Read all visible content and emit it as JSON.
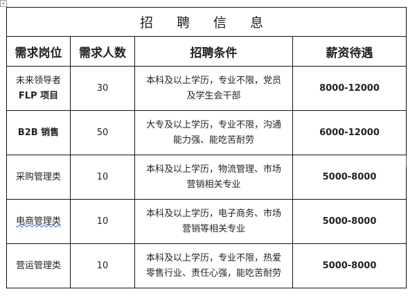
{
  "title": "招 聘 信 息",
  "headers": [
    "需求岗位",
    "需求人数",
    "招聘条件",
    "薪资待遇"
  ],
  "rows": [
    {
      "position": [
        "未来领导者",
        "FLP 项目"
      ],
      "count": "30",
      "requirements": [
        "本科及以上学历，专业不限，党员",
        "及学生会干部"
      ],
      "salary": "8000-12000"
    },
    {
      "position": [
        "B2B 销售"
      ],
      "count": "50",
      "requirements": [
        "大专及以上学历，专业不限，沟通",
        "能力强、能吃苦耐劳"
      ],
      "salary": "6000-12000"
    },
    {
      "position": [
        "采购管理类"
      ],
      "count": "10",
      "requirements": [
        "本科及以上学历，物流管理、市场",
        "营销相关专业"
      ],
      "salary": "5000-8000"
    },
    {
      "position": [
        "电商管理类"
      ],
      "count": "10",
      "requirements": [
        "本科及以上学历，电子商务、市场",
        "营销等相关专业"
      ],
      "salary": "5000-8000"
    },
    {
      "position": [
        "营运管理类"
      ],
      "count": "10",
      "requirements": [
        "本科及以上学历，专业不限，热爱",
        "零售行业、责任心强，能吃苦耐劳"
      ],
      "salary": "5000-8000"
    }
  ]
}
